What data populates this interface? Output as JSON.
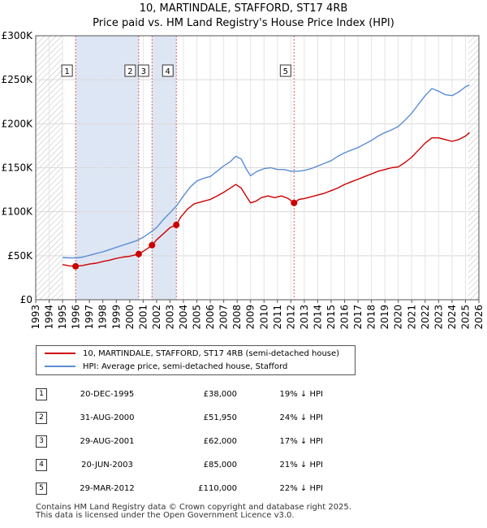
{
  "title_line1": "10, MARTINDALE, STAFFORD, ST17 4RB",
  "title_line2": "Price paid vs. HM Land Registry's House Price Index (HPI)",
  "colors": {
    "red": "#cc0000",
    "blue": "#5b8dd6",
    "shade": "#dde6f4",
    "hatch": "#bbbbbb",
    "vline": "#e06060"
  },
  "chart_data": {
    "type": "line",
    "title": "10, MARTINDALE, STAFFORD, ST17 4RB — Price paid vs. HM Land Registry's House Price Index (HPI)",
    "xlim": [
      1993,
      2026
    ],
    "ylim": [
      0,
      300000
    ],
    "y_ticks": [
      0,
      50000,
      100000,
      150000,
      200000,
      250000,
      300000
    ],
    "y_tick_labels": [
      "£0",
      "£50K",
      "£100K",
      "£150K",
      "£200K",
      "£250K",
      "£300K"
    ],
    "x_ticks": [
      1993,
      1994,
      1995,
      1996,
      1997,
      1998,
      1999,
      2000,
      2001,
      2002,
      2003,
      2004,
      2005,
      2006,
      2007,
      2008,
      2009,
      2010,
      2011,
      2012,
      2013,
      2014,
      2015,
      2016,
      2017,
      2018,
      2019,
      2020,
      2021,
      2022,
      2023,
      2024,
      2025,
      2026
    ],
    "hatched_ranges": [
      [
        1993,
        1995
      ],
      [
        2025.2,
        2026
      ]
    ],
    "shaded_ranges": [
      [
        1995.97,
        2000.67
      ],
      [
        2001.66,
        2003.47
      ]
    ],
    "series": [
      {
        "name": "10, MARTINDALE, STAFFORD, ST17 4RB (semi-detached house)",
        "color": "#cc0000",
        "points": [
          [
            1995,
            40000
          ],
          [
            1995.5,
            38500
          ],
          [
            1995.97,
            38000
          ],
          [
            1996.5,
            39000
          ],
          [
            1997,
            40500
          ],
          [
            1997.5,
            41500
          ],
          [
            1998,
            43500
          ],
          [
            1998.5,
            45000
          ],
          [
            1999,
            47000
          ],
          [
            1999.5,
            48500
          ],
          [
            2000,
            49500
          ],
          [
            2000.4,
            51000
          ],
          [
            2000.67,
            51950
          ],
          [
            2001,
            55000
          ],
          [
            2001.4,
            59000
          ],
          [
            2001.66,
            62000
          ],
          [
            2002,
            68000
          ],
          [
            2002.5,
            75000
          ],
          [
            2003,
            82000
          ],
          [
            2003.47,
            85000
          ],
          [
            2003.8,
            94000
          ],
          [
            2004.3,
            103000
          ],
          [
            2004.8,
            109000
          ],
          [
            2005.5,
            112000
          ],
          [
            2006,
            114000
          ],
          [
            2006.5,
            118000
          ],
          [
            2007,
            122000
          ],
          [
            2007.5,
            127000
          ],
          [
            2007.9,
            131000
          ],
          [
            2008.3,
            127000
          ],
          [
            2008.7,
            117000
          ],
          [
            2009,
            110000
          ],
          [
            2009.4,
            112000
          ],
          [
            2009.8,
            116000
          ],
          [
            2010.3,
            118000
          ],
          [
            2010.8,
            116000
          ],
          [
            2011.3,
            118000
          ],
          [
            2011.8,
            115000
          ],
          [
            2012.24,
            110000
          ],
          [
            2012.6,
            114000
          ],
          [
            2013,
            115000
          ],
          [
            2013.5,
            117000
          ],
          [
            2014,
            119000
          ],
          [
            2014.5,
            121000
          ],
          [
            2015,
            124000
          ],
          [
            2015.5,
            127000
          ],
          [
            2016,
            131000
          ],
          [
            2016.5,
            134000
          ],
          [
            2017,
            137000
          ],
          [
            2017.5,
            140000
          ],
          [
            2018,
            143000
          ],
          [
            2018.5,
            146000
          ],
          [
            2019,
            148000
          ],
          [
            2019.5,
            150000
          ],
          [
            2020,
            151000
          ],
          [
            2020.5,
            156000
          ],
          [
            2021,
            162000
          ],
          [
            2021.5,
            170000
          ],
          [
            2022,
            178000
          ],
          [
            2022.5,
            184000
          ],
          [
            2023,
            184000
          ],
          [
            2023.5,
            182000
          ],
          [
            2024,
            180000
          ],
          [
            2024.5,
            182000
          ],
          [
            2025,
            186000
          ],
          [
            2025.3,
            190000
          ]
        ]
      },
      {
        "name": "HPI: Average price, semi-detached house, Stafford",
        "color": "#5b8dd6",
        "points": [
          [
            1995,
            48000
          ],
          [
            1995.5,
            47500
          ],
          [
            1996,
            47500
          ],
          [
            1996.5,
            48500
          ],
          [
            1997,
            50500
          ],
          [
            1997.5,
            52500
          ],
          [
            1998,
            54500
          ],
          [
            1998.5,
            57000
          ],
          [
            1999,
            59500
          ],
          [
            1999.5,
            62000
          ],
          [
            2000,
            64500
          ],
          [
            2000.5,
            67000
          ],
          [
            2001,
            71000
          ],
          [
            2001.5,
            76000
          ],
          [
            2002,
            82000
          ],
          [
            2002.5,
            91000
          ],
          [
            2003,
            99000
          ],
          [
            2003.5,
            107000
          ],
          [
            2004,
            118000
          ],
          [
            2004.5,
            128000
          ],
          [
            2005,
            135000
          ],
          [
            2005.5,
            138000
          ],
          [
            2006,
            140000
          ],
          [
            2006.5,
            146000
          ],
          [
            2007,
            152000
          ],
          [
            2007.5,
            157000
          ],
          [
            2007.9,
            163000
          ],
          [
            2008.3,
            160000
          ],
          [
            2008.7,
            148000
          ],
          [
            2009,
            141000
          ],
          [
            2009.5,
            146000
          ],
          [
            2010,
            149000
          ],
          [
            2010.5,
            150000
          ],
          [
            2011,
            148000
          ],
          [
            2011.5,
            148000
          ],
          [
            2012,
            146000
          ],
          [
            2012.5,
            146000
          ],
          [
            2013,
            147000
          ],
          [
            2013.5,
            149000
          ],
          [
            2014,
            152000
          ],
          [
            2014.5,
            155000
          ],
          [
            2015,
            158000
          ],
          [
            2015.5,
            163000
          ],
          [
            2016,
            167000
          ],
          [
            2016.5,
            170000
          ],
          [
            2017,
            173000
          ],
          [
            2017.5,
            177000
          ],
          [
            2018,
            181000
          ],
          [
            2018.5,
            186000
          ],
          [
            2019,
            190000
          ],
          [
            2019.5,
            193000
          ],
          [
            2020,
            197000
          ],
          [
            2020.5,
            204000
          ],
          [
            2021,
            212000
          ],
          [
            2021.5,
            222000
          ],
          [
            2022,
            232000
          ],
          [
            2022.5,
            240000
          ],
          [
            2023,
            237000
          ],
          [
            2023.5,
            233000
          ],
          [
            2024,
            232000
          ],
          [
            2024.5,
            236000
          ],
          [
            2025,
            242000
          ],
          [
            2025.3,
            244000
          ]
        ]
      }
    ],
    "markers": [
      {
        "id": "1",
        "x": 1995.97,
        "y": 38000
      },
      {
        "id": "2",
        "x": 2000.67,
        "y": 51950
      },
      {
        "id": "3",
        "x": 2001.66,
        "y": 62000
      },
      {
        "id": "4",
        "x": 2003.47,
        "y": 85000
      },
      {
        "id": "5",
        "x": 2012.24,
        "y": 110000
      }
    ]
  },
  "legend": {
    "red_label": "10, MARTINDALE, STAFFORD, ST17 4RB (semi-detached house)",
    "blue_label": "HPI: Average price, semi-detached house, Stafford"
  },
  "transactions": [
    {
      "num": "1",
      "date": "20-DEC-1995",
      "price": "£38,000",
      "hpi": "19% ↓ HPI"
    },
    {
      "num": "2",
      "date": "31-AUG-2000",
      "price": "£51,950",
      "hpi": "24% ↓ HPI"
    },
    {
      "num": "3",
      "date": "29-AUG-2001",
      "price": "£62,000",
      "hpi": "17% ↓ HPI"
    },
    {
      "num": "4",
      "date": "20-JUN-2003",
      "price": "£85,000",
      "hpi": "21% ↓ HPI"
    },
    {
      "num": "5",
      "date": "29-MAR-2012",
      "price": "£110,000",
      "hpi": "22% ↓ HPI"
    }
  ],
  "footer_line1": "Contains HM Land Registry data © Crown copyright and database right 2025.",
  "footer_line2": "This data is licensed under the Open Government Licence v3.0."
}
